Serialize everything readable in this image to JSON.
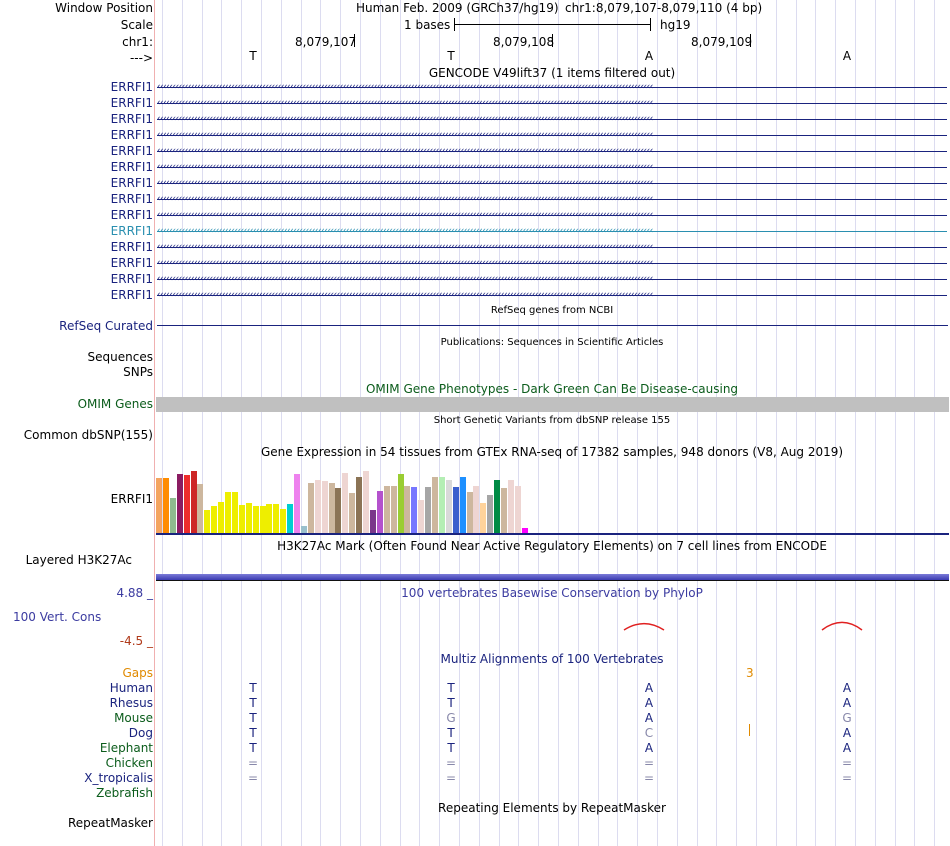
{
  "header": {
    "window_position_label": "Window Position",
    "scale_label": "Scale",
    "chrom_label": "chr1:",
    "strand_label": "--->",
    "assembly_title": "Human Feb. 2009 (GRCh37/hg19)",
    "position_text": "chr1:8,079,107-8,079,110 (4 bp)",
    "scale_text": "1 bases",
    "scale_db": "hg19",
    "coords": [
      "8,079,107",
      "8,079,108",
      "8,079,109"
    ],
    "bases": [
      "T",
      "T",
      "A",
      "A"
    ]
  },
  "tracks": {
    "gencode_title": "GENCODE V49lift37 (1 items filtered out)",
    "gencode_items": [
      "ERRFI1",
      "ERRFI1",
      "ERRFI1",
      "ERRFI1",
      "ERRFI1",
      "ERRFI1",
      "ERRFI1",
      "ERRFI1",
      "ERRFI1",
      "ERRFI1",
      "ERRFI1",
      "ERRFI1",
      "ERRFI1",
      "ERRFI1"
    ],
    "gencode_highlight_color": "#2a8fb0",
    "refseq_title": "RefSeq genes from NCBI",
    "refseq_label": "RefSeq Curated",
    "pubs_title": "Publications: Sequences in Scientific Articles",
    "sequences_label": "Sequences",
    "snps_label": "SNPs",
    "omim_title": "OMIM Gene Phenotypes - Dark Green Can Be Disease-causing",
    "omim_label": "OMIM Genes",
    "dbsnp_title": "Short Genetic Variants from dbSNP release 155",
    "dbsnp_label": "Common dbSNP(155)",
    "gtex_title": "Gene Expression in 54 tissues from GTEx RNA-seq of 17382 samples, 948 donors (V8, Aug 2019)",
    "gtex_label": "ERRFI1",
    "h3k27ac_title": "H3K27Ac Mark (Often Found Near Active Regulatory Elements) on 7 cell lines from ENCODE",
    "h3k27ac_label": "Layered H3K27Ac",
    "phylop_title": "100 vertebrates Basewise Conservation by PhyloP",
    "phylop_label": "100 Vert. Cons",
    "phylop_max": "4.88 _",
    "phylop_min": "-4.5 _",
    "multiz_title": "Multiz Alignments of 100 Vertebrates",
    "gaps_label": "Gaps",
    "gaps_count": "3",
    "species": [
      {
        "name": "Human",
        "bases": [
          "T",
          "T",
          "A",
          "A"
        ]
      },
      {
        "name": "Rhesus",
        "bases": [
          "T",
          "T",
          "A",
          "A"
        ]
      },
      {
        "name": "Mouse",
        "bases": [
          "T",
          "G",
          "A",
          "G"
        ]
      },
      {
        "name": "Dog",
        "bases": [
          "T",
          "T",
          "C",
          "A"
        ]
      },
      {
        "name": "Elephant",
        "bases": [
          "T",
          "T",
          "A",
          "A"
        ]
      },
      {
        "name": "Chicken",
        "bases": [
          "=",
          "=",
          "=",
          "="
        ]
      },
      {
        "name": "X_tropicalis",
        "bases": [
          "=",
          "=",
          "=",
          "="
        ]
      },
      {
        "name": "Zebrafish",
        "bases": [
          "",
          "",
          "",
          ""
        ]
      }
    ],
    "repeat_title": "Repeating Elements by RepeatMasker",
    "repeat_label": "RepeatMasker"
  },
  "gtex": {
    "values": [
      0.93,
      0.93,
      0.6,
      1.0,
      0.98,
      1.05,
      0.83,
      0.4,
      0.46,
      0.53,
      0.7,
      0.7,
      0.49,
      0.52,
      0.46,
      0.46,
      0.5,
      0.5,
      0.42,
      0.5,
      1.0,
      0.14,
      0.85,
      0.9,
      0.88,
      0.85,
      0.76,
      1.02,
      0.69,
      0.95,
      1.05,
      0.4,
      0.71,
      0.8,
      0.8,
      1.0,
      0.8,
      0.78,
      0.56,
      0.78,
      0.95,
      0.95,
      0.9,
      0.78,
      0.95,
      0.7,
      0.8,
      0.52,
      0.65,
      0.9,
      0.76,
      0.9,
      0.8,
      0.1
    ],
    "colors": [
      "#f4a460",
      "#ff8c00",
      "#8fbc8f",
      "#8b1c62",
      "#ee2c2c",
      "#cd2626",
      "#cdb79e",
      "#eeee00",
      "#eeee00",
      "#eeee00",
      "#eeee00",
      "#eeee00",
      "#eeee00",
      "#eeee00",
      "#eeee00",
      "#eeee00",
      "#eeee00",
      "#eeee00",
      "#eeee00",
      "#00ced1",
      "#ee82ee",
      "#9ac0cd",
      "#cdb79e",
      "#eed5d2",
      "#eed5d2",
      "#cdb79e",
      "#8b7355",
      "#eed5d2",
      "#cdb79e",
      "#8b7355",
      "#eed5d2",
      "#7a378b",
      "#b452cd",
      "#cdb79e",
      "#cdb79e",
      "#9acd32",
      "#cdb79e",
      "#7777ff",
      "#eed5d2",
      "#a6a6a6",
      "#cdb79e",
      "#b4eeb4",
      "#d9d9d9",
      "#3a5fcd",
      "#1e90ff",
      "#cdb79e",
      "#eed5d2",
      "#ffd39b",
      "#a6a6a6",
      "#008b45",
      "#cdb79e",
      "#eed5d2",
      "#eed5d2",
      "#ff00ff"
    ]
  },
  "phylop": {
    "peaks": [
      {
        "base_index": 2,
        "value": 0.6
      },
      {
        "base_index": 3,
        "value": 0.9
      }
    ]
  }
}
